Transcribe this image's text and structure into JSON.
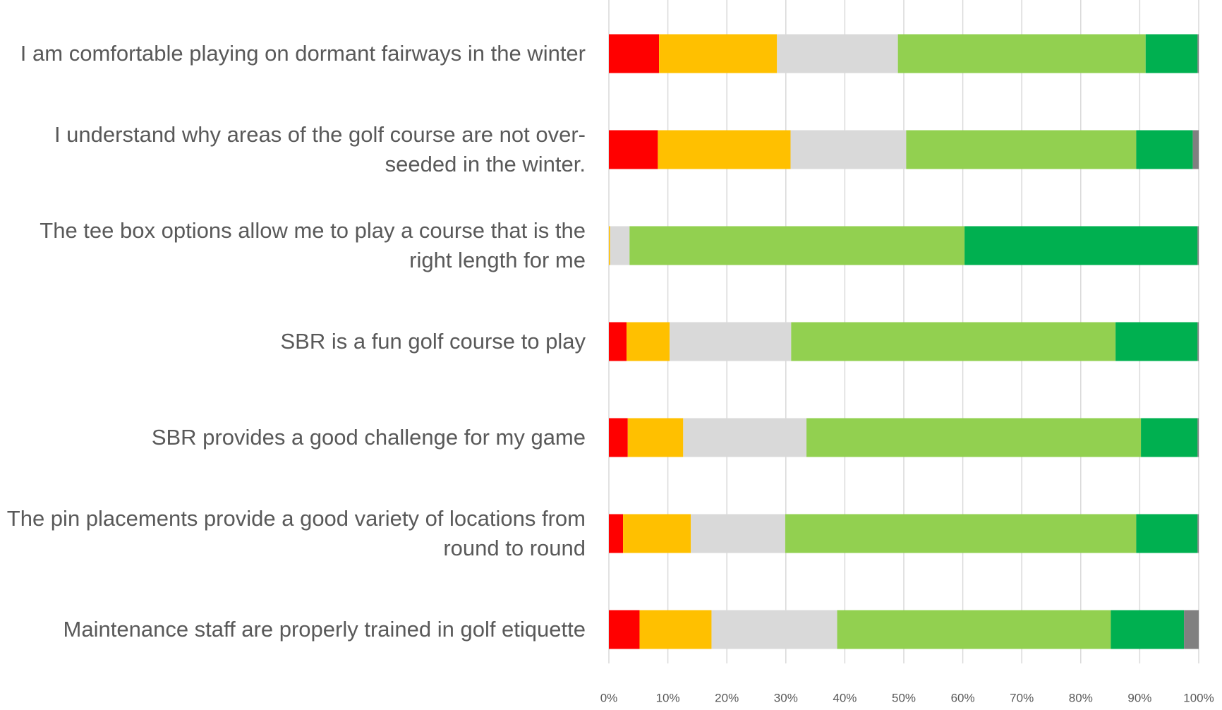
{
  "chart_data": {
    "type": "stacked_barh",
    "categories": [
      "I am comfortable playing on dormant fairways in the winter",
      "I understand why areas of the golf course are not over-seeded in the winter.",
      "The tee box options allow me to play a course that is the right length for me",
      "SBR is a fun golf course to play",
      "SBR provides a good challenge for my game",
      "The pin placements provide a good variety of locations from round to round",
      "Maintenance staff are properly trained in golf etiquette"
    ],
    "series": [
      {
        "color": "#ff0000",
        "values": [
          8.5,
          8.3,
          0,
          3,
          3.2,
          2.4,
          5.2
        ]
      },
      {
        "color": "#ffc000",
        "values": [
          20,
          22.5,
          0.2,
          7.3,
          9.4,
          11.5,
          12.2
        ]
      },
      {
        "color": "#d9d9d9",
        "values": [
          20.5,
          19.6,
          3.3,
          20.6,
          20.9,
          16,
          21.3
        ]
      },
      {
        "color": "#92d050",
        "values": [
          42,
          39,
          56.8,
          55,
          56.7,
          59.5,
          46.4
        ]
      },
      {
        "color": "#00b050",
        "values": [
          8.8,
          9.6,
          39.5,
          13.9,
          9.6,
          10.4,
          12.4
        ]
      },
      {
        "color": "#808080",
        "values": [
          0.2,
          1,
          0.2,
          0.2,
          0.2,
          0.2,
          2.5
        ]
      }
    ],
    "xlim": [
      0,
      100
    ],
    "xticks": [
      {
        "value": 0,
        "label": "0%"
      },
      {
        "value": 10,
        "label": "10%"
      },
      {
        "value": 20,
        "label": "20%"
      },
      {
        "value": 30,
        "label": "30%"
      },
      {
        "value": 40,
        "label": "40%"
      },
      {
        "value": 50,
        "label": "50%"
      },
      {
        "value": 60,
        "label": "60%"
      },
      {
        "value": 70,
        "label": "70%"
      },
      {
        "value": 80,
        "label": "80%"
      },
      {
        "value": 90,
        "label": "90%"
      },
      {
        "value": 100,
        "label": "100%"
      }
    ],
    "grid": true
  }
}
